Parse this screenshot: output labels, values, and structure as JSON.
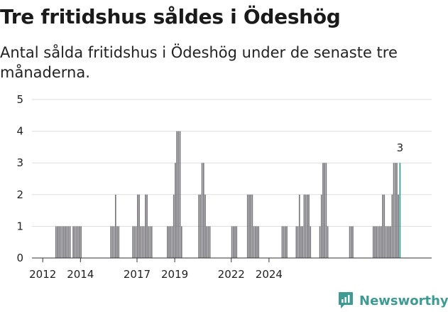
{
  "chart_data": {
    "type": "bar",
    "title": "Tre fritidshus såldes i Ödeshög",
    "subtitle": "Antal sålda fritidshus i Ödeshög under de senaste tre månaderna.",
    "ylim": [
      0,
      5
    ],
    "y_ticks": [
      0,
      1,
      2,
      3,
      4,
      5
    ],
    "x_tick_labels": [
      "2012",
      "2014",
      "2017",
      "2019",
      "2022",
      "2024"
    ],
    "start_month": "2011-12",
    "values": [
      0,
      0,
      0,
      0,
      0,
      0,
      0,
      0,
      0,
      1,
      1,
      1,
      1,
      1,
      1,
      1,
      1,
      1,
      1,
      0,
      1,
      1,
      1,
      1,
      1,
      1,
      0,
      0,
      0,
      0,
      0,
      0,
      0,
      0,
      0,
      0,
      0,
      0,
      0,
      0,
      0,
      0,
      0,
      0,
      1,
      1,
      1,
      2,
      1,
      1,
      0,
      0,
      0,
      0,
      0,
      0,
      0,
      0,
      1,
      1,
      1,
      2,
      2,
      1,
      1,
      1,
      2,
      2,
      1,
      1,
      1,
      0,
      0,
      0,
      0,
      0,
      0,
      0,
      0,
      0,
      1,
      1,
      1,
      1,
      2,
      3,
      4,
      4,
      4,
      1,
      0,
      0,
      0,
      0,
      0,
      0,
      0,
      0,
      0,
      0,
      2,
      2,
      3,
      3,
      2,
      1,
      1,
      1,
      0,
      0,
      0,
      0,
      0,
      0,
      0,
      0,
      0,
      0,
      0,
      0,
      0,
      1,
      1,
      1,
      1,
      0,
      0,
      0,
      0,
      0,
      0,
      2,
      2,
      2,
      2,
      1,
      1,
      1,
      1,
      0,
      0,
      0,
      0,
      0,
      0,
      0,
      0,
      0,
      0,
      0,
      0,
      0,
      0,
      1,
      1,
      1,
      1,
      0,
      0,
      0,
      0,
      0,
      1,
      1,
      2,
      1,
      1,
      2,
      2,
      2,
      2,
      1,
      0,
      0,
      0,
      0,
      0,
      1,
      2,
      3,
      3,
      3,
      1,
      0,
      0,
      0,
      0,
      0,
      0,
      0,
      0,
      0,
      0,
      0,
      0,
      0,
      1,
      1,
      1,
      0,
      0,
      0,
      0,
      0,
      0,
      0,
      0,
      0,
      0,
      0,
      0,
      1,
      1,
      1,
      1,
      1,
      1,
      2,
      2,
      1,
      1,
      1,
      1,
      2,
      3,
      3,
      3,
      2,
      3
    ],
    "highlight_label": "3",
    "bar_color": "#77767b",
    "highlight_color": "#2a9d8f",
    "grid": true
  },
  "brand": {
    "name": "Newsworthy",
    "logo_icon": "newsworthy-chart-logo-icon",
    "color": "#3e9b93"
  }
}
